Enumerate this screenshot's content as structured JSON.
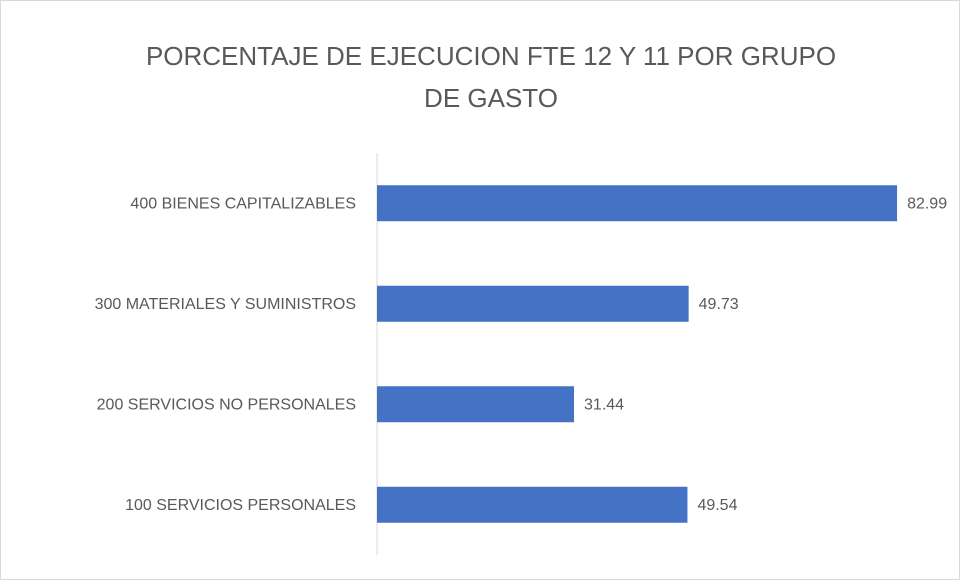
{
  "chart_data": {
    "type": "bar",
    "orientation": "horizontal",
    "title": "PORCENTAJE DE EJECUCION FTE 12 Y 11 POR GRUPO DE GASTO",
    "categories": [
      "400 BIENES CAPITALIZABLES",
      "300 MATERIALES Y SUMINISTROS",
      "200 SERVICIOS NO PERSONALES",
      "100 SERVICIOS PERSONALES"
    ],
    "values": [
      82.99,
      49.73,
      31.44,
      49.54
    ],
    "color": "#4472c4",
    "xlim": [
      0,
      90
    ]
  }
}
